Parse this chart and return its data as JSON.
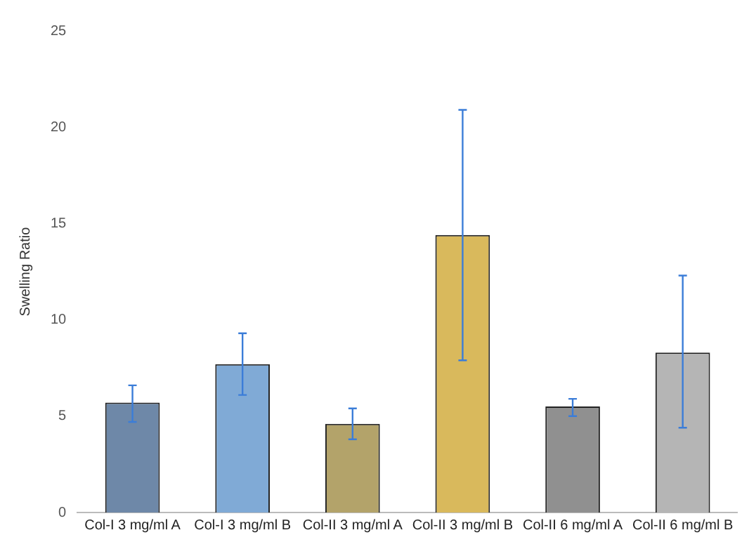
{
  "chart_data": {
    "type": "bar",
    "ylabel": "Swelling Ratio",
    "categories": [
      "Col-I 3 mg/ml A",
      "Col-I 3 mg/ml B",
      "Col-II 3 mg/ml A",
      "Col-II 3 mg/ml B",
      "Col-II 6 mg/ml A",
      "Col-II 6 mg/ml B"
    ],
    "values": [
      5.7,
      7.7,
      4.6,
      14.4,
      5.5,
      8.3
    ],
    "colors": [
      "#6e88a8",
      "#80aad6",
      "#b3a36a",
      "#d9b95c",
      "#909090",
      "#b5b5b5"
    ],
    "errors": [
      [
        4.7,
        6.6
      ],
      [
        6.1,
        9.3
      ],
      [
        3.8,
        5.4
      ],
      [
        7.9,
        20.9
      ],
      [
        5.0,
        5.9
      ],
      [
        4.4,
        12.3
      ]
    ],
    "ylim": [
      0,
      25
    ],
    "yticks": [
      0,
      5,
      10,
      15,
      20,
      25
    ],
    "grid": false,
    "legend": false
  }
}
